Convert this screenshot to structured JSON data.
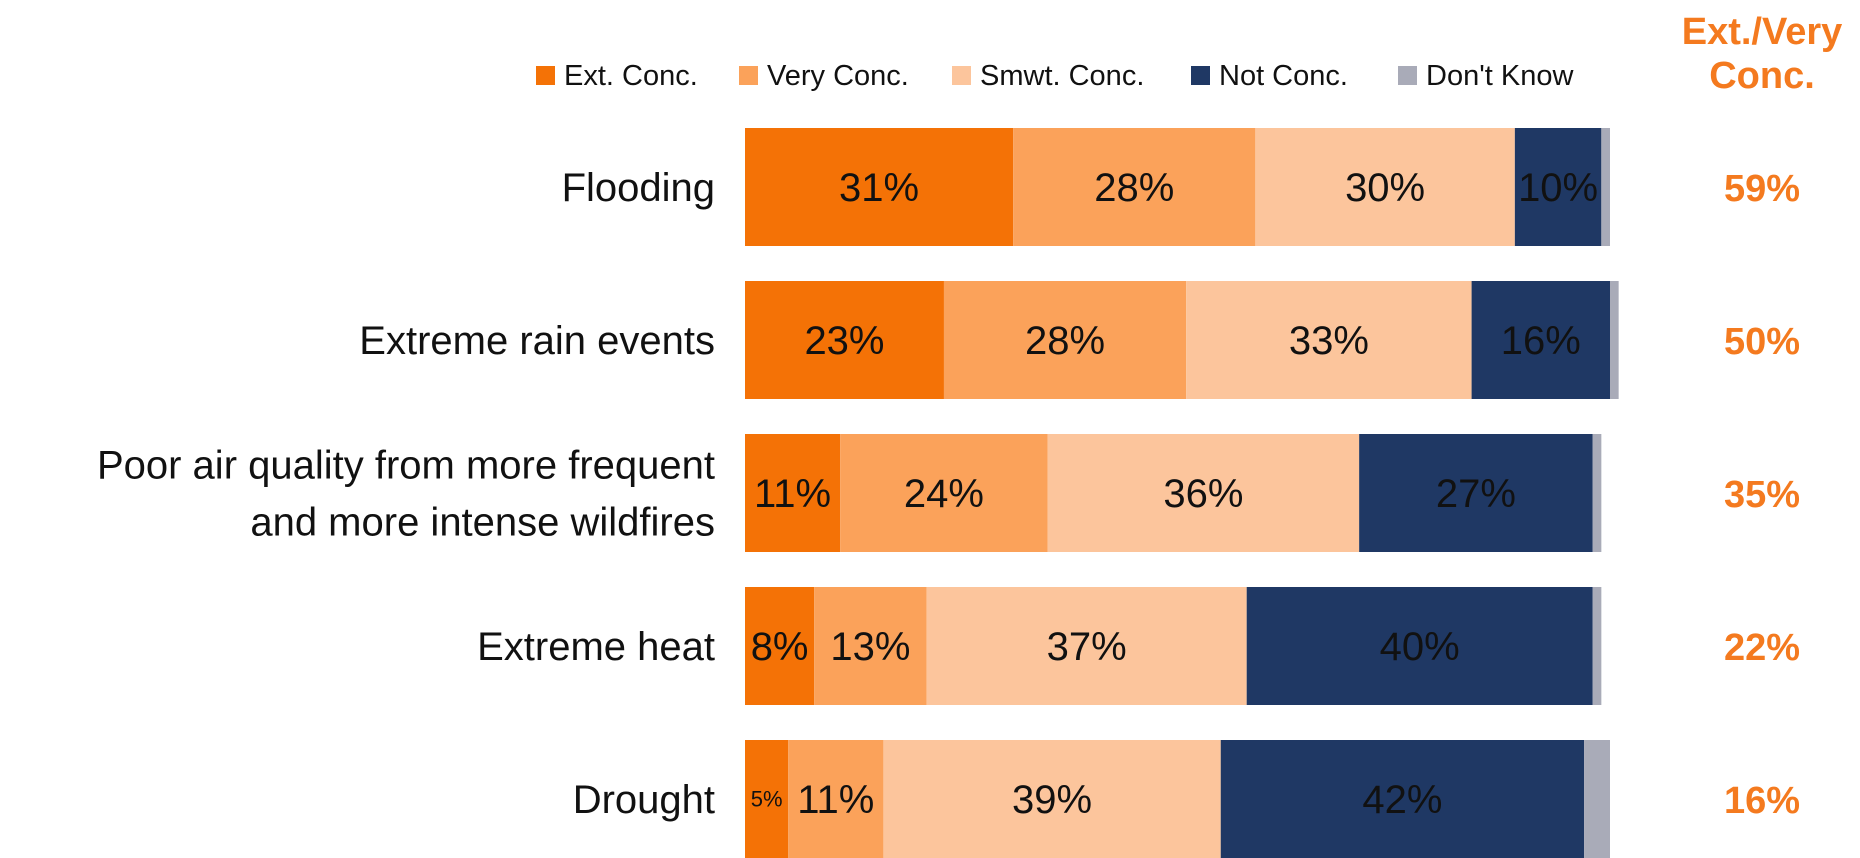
{
  "chart_data": {
    "type": "bar",
    "orientation": "horizontal",
    "stacked": true,
    "categories": [
      [
        "Flooding"
      ],
      [
        "Extreme rain events"
      ],
      [
        "Poor air quality from more frequent",
        "and more intense wildfires"
      ],
      [
        "Extreme heat"
      ],
      [
        "Drought"
      ]
    ],
    "series": [
      {
        "name": "Ext. Conc.",
        "color": "#F47206",
        "values": [
          31,
          23,
          11,
          8,
          5
        ],
        "labels": [
          "31%",
          "23%",
          "11%",
          "8%",
          "5%"
        ]
      },
      {
        "name": "Very Conc.",
        "color": "#FBA25A",
        "values": [
          28,
          28,
          24,
          13,
          11
        ],
        "labels": [
          "28%",
          "28%",
          "24%",
          "13%",
          "11%"
        ]
      },
      {
        "name": "Smwt. Conc.",
        "color": "#FCC59C",
        "values": [
          30,
          33,
          36,
          37,
          39
        ],
        "labels": [
          "30%",
          "33%",
          "36%",
          "37%",
          "39%"
        ]
      },
      {
        "name": "Not Conc.",
        "color": "#1F3864",
        "values": [
          10,
          16,
          27,
          40,
          42
        ],
        "labels": [
          "10%",
          "16%",
          "27%",
          "40%",
          "42%"
        ]
      },
      {
        "name": "Don't Know",
        "color": "#A9ABB8",
        "values": [
          1,
          1,
          1,
          1,
          3
        ],
        "labels": [
          "",
          "",
          "",
          "",
          ""
        ]
      }
    ],
    "summary": {
      "title_lines": [
        "Ext./Very",
        "Conc."
      ],
      "values": [
        "59%",
        "50%",
        "35%",
        "22%",
        "16%"
      ],
      "color": "#F47A1F"
    },
    "legend_position": "top",
    "xlim": [
      0,
      100
    ],
    "grid": false
  }
}
